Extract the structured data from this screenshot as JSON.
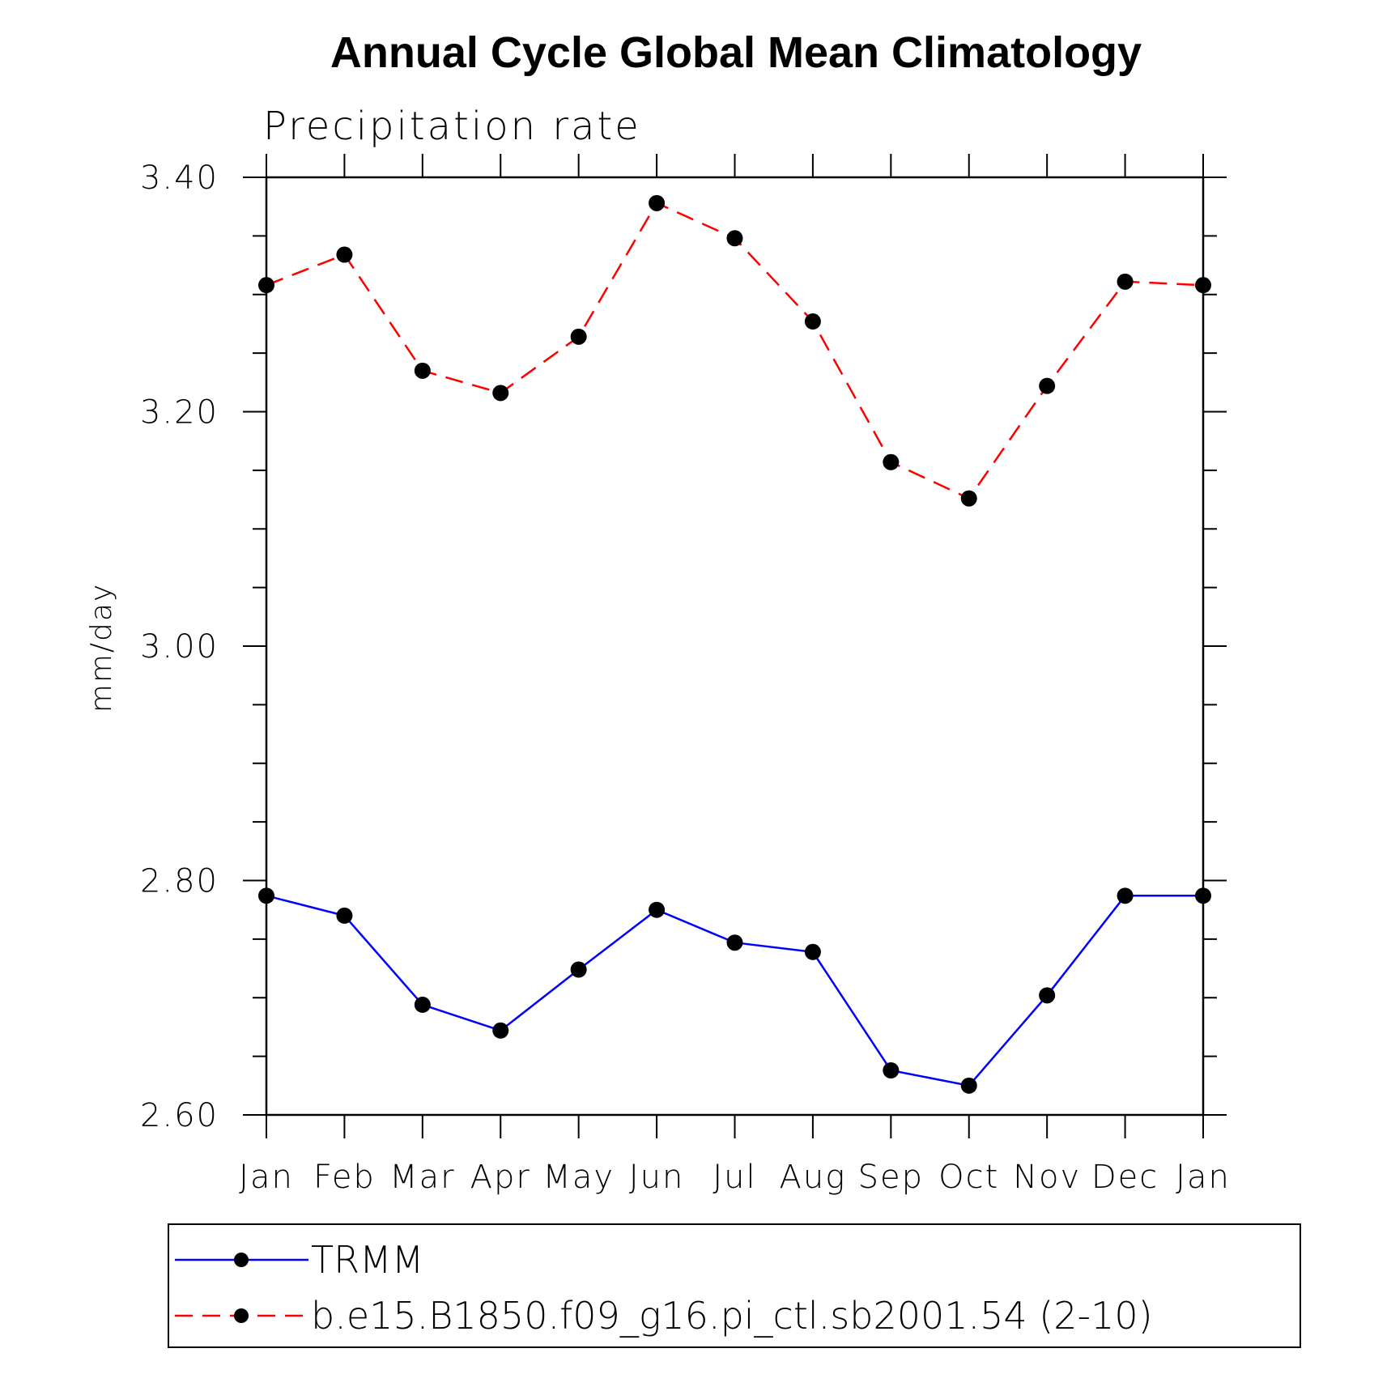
{
  "chart_data": {
    "type": "line",
    "title": "Annual Cycle Global Mean Climatology",
    "subtitle": "Precipitation rate",
    "ylabel": "mm/day",
    "xlabel": "",
    "categories": [
      "Jan",
      "Feb",
      "Mar",
      "Apr",
      "May",
      "Jun",
      "Jul",
      "Aug",
      "Sep",
      "Oct",
      "Nov",
      "Dec",
      "Jan"
    ],
    "ylim": [
      2.6,
      3.4
    ],
    "yticks": [
      "2.60",
      "2.80",
      "3.00",
      "3.20",
      "3.40"
    ],
    "ytick_values": [
      2.6,
      2.8,
      3.0,
      3.2,
      3.4
    ],
    "grid": false,
    "legend_position": "bottom",
    "series": [
      {
        "name": "TRMM",
        "color": "#0000ff",
        "dash": "solid",
        "marker": "filled-circle",
        "values": [
          2.787,
          2.77,
          2.694,
          2.672,
          2.724,
          2.775,
          2.747,
          2.739,
          2.638,
          2.625,
          2.702,
          2.787,
          2.787
        ]
      },
      {
        "name": "b.e15.B1850.f09_g16.pi_ctl.sb2001.54 (2-10)",
        "color": "#ff0000",
        "dash": "dashed",
        "marker": "filled-circle",
        "values": [
          3.308,
          3.334,
          3.235,
          3.216,
          3.264,
          3.378,
          3.348,
          3.277,
          3.157,
          3.126,
          3.222,
          3.311,
          3.308
        ]
      }
    ]
  }
}
